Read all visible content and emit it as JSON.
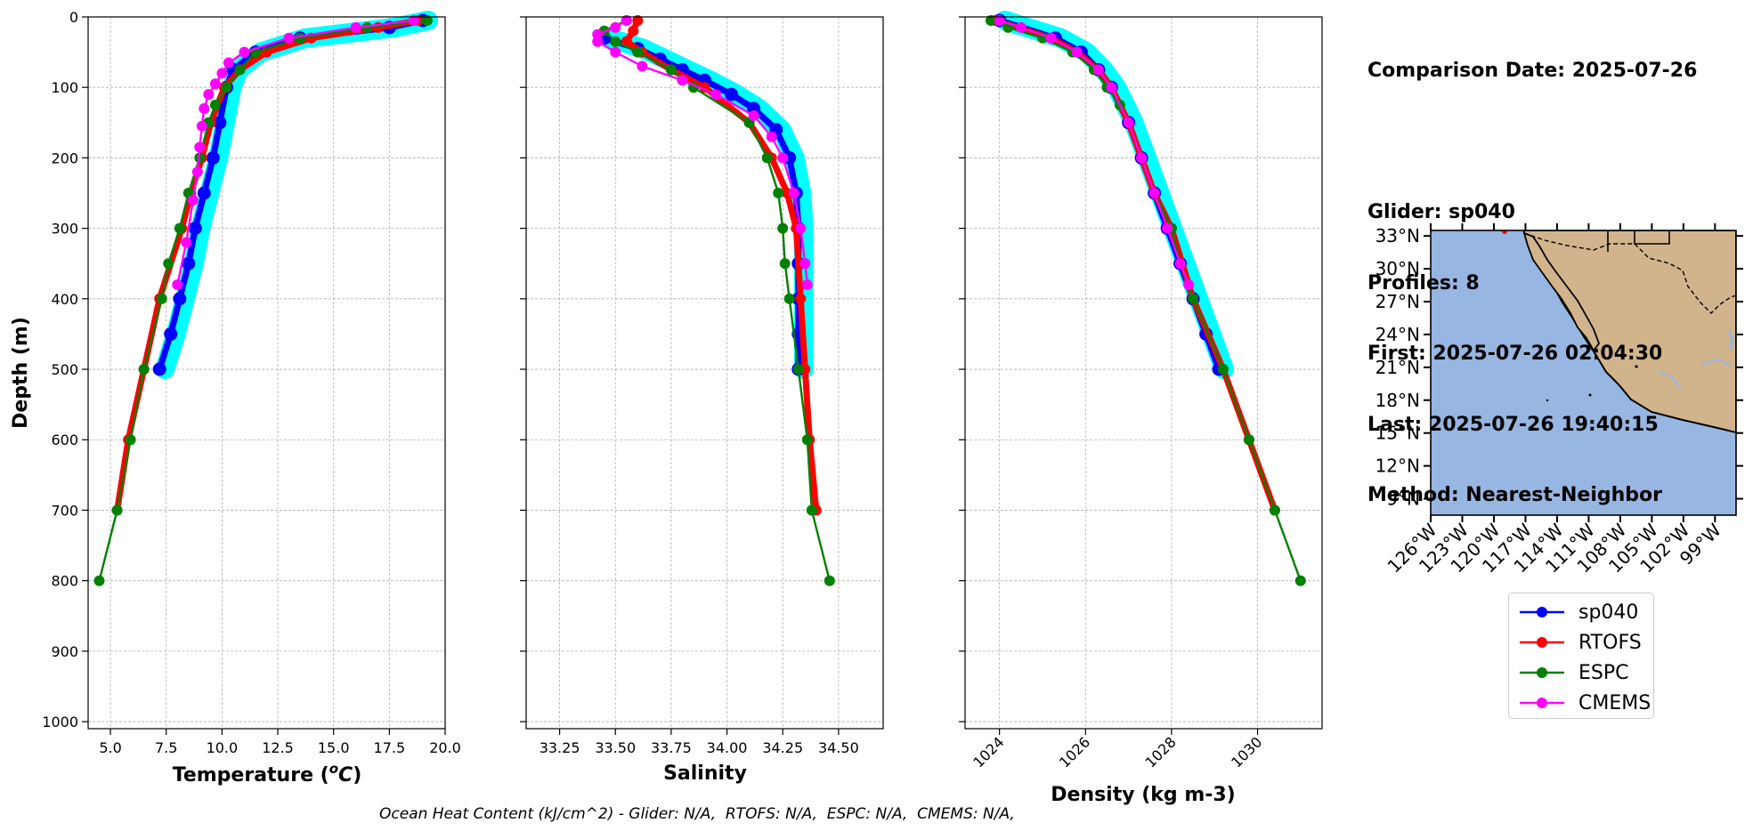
{
  "info": {
    "comparison_date": "Comparison Date: 2025-07-26",
    "glider": "Glider: sp040",
    "profiles": "Profiles: 8",
    "first": "First: 2025-07-26 02:04:30",
    "last": "Last: 2025-07-26 19:40:15",
    "method": "Method: Nearest-Neighbor"
  },
  "footnote": "Ocean Heat Content (kJ/cm^2) - Glider: N/A,  RTOFS: N/A,  ESPC: N/A,  CMEMS: N/A,",
  "colors": {
    "sp040": "#0000ff",
    "sp040_profiles": "#00ffff",
    "RTOFS": "#ff0000",
    "ESPC": "#008000",
    "CMEMS": "#ff00ff",
    "ocean": "#97b6e1",
    "land": "#d2b48c"
  },
  "legend": [
    {
      "name": "sp040",
      "color": "#0000ff"
    },
    {
      "name": "RTOFS",
      "color": "#ff0000"
    },
    {
      "name": "ESPC",
      "color": "#008000"
    },
    {
      "name": "CMEMS",
      "color": "#ff00ff"
    }
  ],
  "chart_data": [
    {
      "type": "line",
      "xlabel": "Temperature ($^{o}C$)",
      "ylabel": "Depth (m)",
      "xlim": [
        4.0,
        20.0
      ],
      "ylim": [
        1010,
        0
      ],
      "xticks": [
        "5.0",
        "7.5",
        "10.0",
        "12.5",
        "15.0",
        "17.5",
        "20.0"
      ],
      "yticks": [
        "0",
        "100",
        "200",
        "300",
        "400",
        "500",
        "600",
        "700",
        "800",
        "900",
        "1000"
      ],
      "grid": true,
      "series": [
        {
          "name": "sp040",
          "depth": [
            5,
            15,
            30,
            50,
            75,
            100,
            150,
            200,
            250,
            300,
            350,
            400,
            450,
            500
          ],
          "values": [
            19.0,
            17.5,
            13.5,
            11.5,
            10.5,
            10.2,
            9.9,
            9.6,
            9.2,
            8.8,
            8.5,
            8.1,
            7.7,
            7.2
          ]
        },
        {
          "name": "RTOFS",
          "depth": [
            5,
            15,
            30,
            50,
            75,
            100,
            150,
            200,
            250,
            300,
            400,
            500,
            600,
            700
          ],
          "values": [
            18.8,
            17.0,
            14.0,
            12.0,
            10.8,
            10.1,
            9.5,
            9.1,
            8.6,
            8.2,
            7.2,
            6.5,
            5.8,
            5.3
          ]
        },
        {
          "name": "ESPC",
          "depth": [
            5,
            15,
            30,
            50,
            75,
            100,
            125,
            150,
            200,
            250,
            300,
            350,
            400,
            500,
            600,
            700,
            800
          ],
          "values": [
            19.2,
            16.5,
            13.5,
            11.5,
            10.8,
            10.2,
            9.7,
            9.4,
            9.0,
            8.5,
            8.1,
            7.6,
            7.3,
            6.5,
            5.9,
            5.3,
            4.5
          ]
        },
        {
          "name": "CMEMS",
          "depth": [
            5,
            15,
            30,
            50,
            65,
            80,
            95,
            110,
            130,
            155,
            185,
            220,
            260,
            320,
            380
          ],
          "values": [
            18.6,
            16.0,
            13.0,
            11.0,
            10.3,
            10.0,
            9.7,
            9.4,
            9.2,
            9.1,
            9.0,
            8.9,
            8.7,
            8.4,
            8.0
          ]
        }
      ]
    },
    {
      "type": "line",
      "xlabel": "Salinity",
      "xlim": [
        33.1,
        34.7
      ],
      "ylim": [
        1010,
        0
      ],
      "xticks": [
        "33.25",
        "33.50",
        "33.75",
        "34.00",
        "34.25",
        "34.50"
      ],
      "grid": true,
      "series": [
        {
          "name": "sp040",
          "depth": [
            30,
            45,
            60,
            75,
            90,
            110,
            130,
            160,
            200,
            250,
            300,
            350,
            400,
            450,
            500
          ],
          "values": [
            33.45,
            33.6,
            33.7,
            33.8,
            33.9,
            34.02,
            34.12,
            34.22,
            34.28,
            34.31,
            34.32,
            34.32,
            34.32,
            34.32,
            34.32
          ]
        },
        {
          "name": "RTOFS",
          "depth": [
            5,
            20,
            35,
            50,
            75,
            100,
            150,
            200,
            250,
            300,
            400,
            500,
            600,
            700
          ],
          "values": [
            33.6,
            33.58,
            33.55,
            33.62,
            33.75,
            33.9,
            34.1,
            34.2,
            34.27,
            34.31,
            34.33,
            34.35,
            34.37,
            34.4
          ]
        },
        {
          "name": "ESPC",
          "depth": [
            5,
            20,
            35,
            50,
            75,
            100,
            150,
            200,
            250,
            300,
            350,
            400,
            500,
            600,
            700,
            800
          ],
          "values": [
            33.55,
            33.45,
            33.5,
            33.6,
            33.75,
            33.85,
            34.1,
            34.18,
            34.23,
            34.25,
            34.26,
            34.28,
            34.32,
            34.36,
            34.38,
            34.46
          ]
        },
        {
          "name": "CMEMS",
          "depth": [
            5,
            15,
            25,
            35,
            50,
            70,
            90,
            110,
            140,
            170,
            200,
            250,
            300,
            350,
            380
          ],
          "values": [
            33.55,
            33.5,
            33.42,
            33.42,
            33.5,
            33.62,
            33.8,
            33.95,
            34.12,
            34.2,
            34.25,
            34.3,
            34.33,
            34.35,
            34.36
          ]
        }
      ]
    },
    {
      "type": "line",
      "xlabel": "Density (kg m-3)",
      "xlim": [
        1023.2,
        1031.5
      ],
      "ylim": [
        1010,
        0
      ],
      "xticks": [
        "1024",
        "1026",
        "1028",
        "1030"
      ],
      "grid": true,
      "series": [
        {
          "name": "sp040",
          "depth": [
            5,
            30,
            50,
            75,
            100,
            150,
            200,
            250,
            300,
            350,
            400,
            450,
            500
          ],
          "values": [
            1024.0,
            1025.3,
            1025.9,
            1026.3,
            1026.6,
            1027.0,
            1027.3,
            1027.6,
            1027.9,
            1028.2,
            1028.5,
            1028.8,
            1029.1
          ]
        },
        {
          "name": "RTOFS",
          "depth": [
            5,
            30,
            50,
            75,
            100,
            150,
            200,
            250,
            300,
            400,
            500,
            600,
            700
          ],
          "values": [
            1023.9,
            1025.2,
            1025.8,
            1026.3,
            1026.6,
            1027.0,
            1027.3,
            1027.6,
            1028.0,
            1028.5,
            1029.2,
            1029.8,
            1030.4
          ]
        },
        {
          "name": "ESPC",
          "depth": [
            5,
            15,
            30,
            50,
            75,
            100,
            125,
            150,
            200,
            250,
            300,
            350,
            400,
            500,
            600,
            700,
            800
          ],
          "values": [
            1023.8,
            1024.2,
            1025.0,
            1025.7,
            1026.2,
            1026.5,
            1026.8,
            1027.0,
            1027.3,
            1027.6,
            1028.0,
            1028.2,
            1028.5,
            1029.2,
            1029.8,
            1030.4,
            1031.0
          ]
        },
        {
          "name": "CMEMS",
          "depth": [
            5,
            15,
            30,
            50,
            75,
            100,
            150,
            200,
            250,
            300,
            350,
            380
          ],
          "values": [
            1024.0,
            1024.5,
            1025.2,
            1025.8,
            1026.3,
            1026.6,
            1027.0,
            1027.3,
            1027.6,
            1027.9,
            1028.2,
            1028.4
          ]
        }
      ]
    }
  ],
  "map": {
    "lat_ticks": [
      "33°N",
      "30°N",
      "27°N",
      "24°N",
      "21°N",
      "18°N",
      "15°N",
      "12°N",
      "9°N"
    ],
    "lon_ticks": [
      "126°W",
      "123°W",
      "120°W",
      "117°W",
      "114°W",
      "111°W",
      "108°W",
      "105°W",
      "102°W",
      "99°W"
    ],
    "lat_range": [
      7.5,
      33.5
    ],
    "lon_range": [
      -126.0,
      -97.0
    ]
  }
}
